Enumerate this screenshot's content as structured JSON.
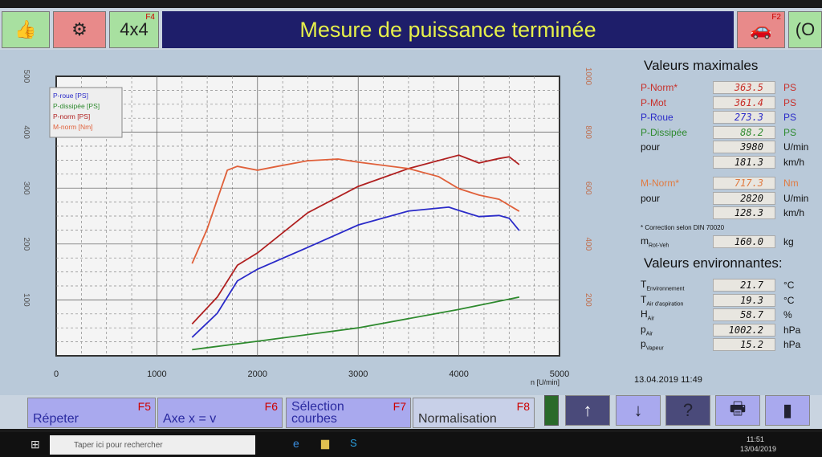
{
  "toolbar": {
    "thumb_icon": "thumbs-up-icon",
    "engine_icon": "engine-icon",
    "four_by_four": "4x4",
    "f4": "F4",
    "f2": "F2",
    "car_icon": "car-icon",
    "title": "Mesure de puissance terminée"
  },
  "max": {
    "heading": "Valeurs maximales",
    "rows": [
      {
        "label": "P-Norm*",
        "value": "363.5",
        "unit": "PS",
        "color": "#c8302a"
      },
      {
        "label": "P-Mot",
        "value": "361.4",
        "unit": "PS",
        "color": "#c8302a"
      },
      {
        "label": "P-Roue",
        "value": "273.3",
        "unit": "PS",
        "color": "#2a2ac8"
      },
      {
        "label": "P-Dissipée",
        "value": "88.2",
        "unit": "PS",
        "color": "#2e8a2e"
      },
      {
        "label": "pour",
        "value": "3980",
        "unit": "U/min",
        "color": "#111"
      },
      {
        "label": "",
        "value": "181.3",
        "unit": "km/h",
        "color": "#111"
      }
    ],
    "torque_rows": [
      {
        "label": "M-Norm*",
        "value": "717.3",
        "unit": "Nm",
        "color": "#e07a40"
      },
      {
        "label": "pour",
        "value": "2820",
        "unit": "U/min",
        "color": "#111"
      },
      {
        "label": "",
        "value": "128.3",
        "unit": "km/h",
        "color": "#111"
      }
    ],
    "note": "* Correction selon DIN 70020",
    "mass": {
      "label": "m",
      "sub": "Rot-Veh",
      "value": "160.0",
      "unit": "kg"
    }
  },
  "env": {
    "heading": "Valeurs environnantes:",
    "rows": [
      {
        "label": "T",
        "sub": "Environnement",
        "value": "21.7",
        "unit": "°C"
      },
      {
        "label": "T",
        "sub": "Air d'aspiration",
        "value": "19.3",
        "unit": "°C"
      },
      {
        "label": "H",
        "sub": "Air",
        "value": "58.7",
        "unit": "%"
      },
      {
        "label": "p",
        "sub": "Air",
        "value": "1002.2",
        "unit": "hPa"
      },
      {
        "label": "p",
        "sub": "Vapeur",
        "value": "15.2",
        "unit": "hPa"
      }
    ]
  },
  "datetime": "13.04.2019  11:49",
  "buttons": [
    {
      "label": "Répeter",
      "key": "F5"
    },
    {
      "label": "Axe x = v",
      "key": "F6"
    },
    {
      "label": "Sélection courbes",
      "key": "F7"
    },
    {
      "label": "Normalisation",
      "key": "F8"
    }
  ],
  "icon_buttons": [
    {
      "icon": "arrow-up-icon",
      "glyph": "↑"
    },
    {
      "icon": "arrow-down-icon",
      "glyph": "↓"
    },
    {
      "icon": "help-icon",
      "glyph": "?"
    },
    {
      "icon": "printer-icon",
      "glyph": "🖶"
    },
    {
      "icon": "door-icon",
      "glyph": "▮"
    }
  ],
  "taskbar": {
    "search_placeholder": "Taper ici pour rechercher",
    "time": "11:51",
    "date": "13/04/2019"
  },
  "chart_data": {
    "type": "line",
    "xlabel": "n [U/min]",
    "xlim": [
      0,
      5000
    ],
    "ylim_left": [
      0,
      500
    ],
    "ylim_right": [
      0,
      1000
    ],
    "x_ticks": [
      "0",
      "1000",
      "2000",
      "3000",
      "4000",
      "5000"
    ],
    "y_ticks_left": [
      "100",
      "200",
      "300",
      "400",
      "500"
    ],
    "y_ticks_right": [
      "200",
      "400",
      "600",
      "800",
      "1000"
    ],
    "grid": true,
    "legend": "top-left",
    "series": [
      {
        "name": "P-roue [PS]",
        "axis": "left",
        "color": "#2a2ac8",
        "x": [
          1350,
          1600,
          1800,
          2000,
          2500,
          3000,
          3500,
          3900,
          4000,
          4200,
          4400,
          4500,
          4600
        ],
        "y": [
          33,
          76,
          134,
          155,
          194,
          234,
          259,
          266,
          260,
          249,
          251,
          246,
          224
        ]
      },
      {
        "name": "P-dissipée [PS]",
        "axis": "left",
        "color": "#2e8a2e",
        "x": [
          1350,
          2000,
          3000,
          4000,
          4600
        ],
        "y": [
          11,
          26,
          50,
          83,
          105
        ]
      },
      {
        "name": "P-norm [PS]",
        "axis": "left",
        "color": "#b02020",
        "x": [
          1350,
          1600,
          1800,
          2000,
          2500,
          3000,
          3500,
          4000,
          4200,
          4400,
          4500,
          4600
        ],
        "y": [
          57,
          105,
          162,
          184,
          256,
          303,
          335,
          359,
          345,
          353,
          356,
          342
        ]
      },
      {
        "name": "M-norm [Nm]",
        "axis": "right",
        "color": "#e0603a",
        "x": [
          1350,
          1500,
          1700,
          1800,
          2000,
          2200,
          2500,
          2800,
          3000,
          3500,
          3800,
          4000,
          4200,
          4400,
          4600
        ],
        "y": [
          330,
          454,
          664,
          678,
          664,
          678,
          698,
          704,
          693,
          670,
          641,
          598,
          575,
          560,
          517
        ]
      }
    ]
  }
}
